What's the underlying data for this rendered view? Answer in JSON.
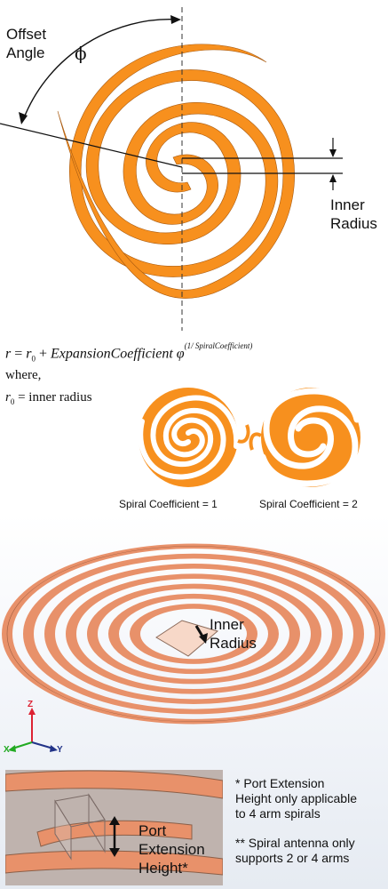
{
  "top_diagram": {
    "offset_label_line1": "Offset",
    "offset_label_line2": "Angle",
    "phi_symbol": "ϕ",
    "inner_radius_line1": "Inner",
    "inner_radius_line2": "Radius"
  },
  "formula": {
    "lhs": "r",
    "eq": "=",
    "r0": "r",
    "r0_sub": "0",
    "plus": "+",
    "coef_text": "ExpansionCoefficient",
    "phi": "φ",
    "exponent": "(1/ SpiralCoefficient)",
    "where": "where,",
    "r0_def": "= inner radius"
  },
  "thumbnails": [
    {
      "caption": "Spiral Coefficient = 1"
    },
    {
      "caption": "Spiral Coefficient = 2"
    }
  ],
  "model_view": {
    "inner_label_line1": "Inner",
    "inner_label_line2": "Radius",
    "axis_z": "Z",
    "axis_y": "Y",
    "axis_x": "X"
  },
  "port_detail": {
    "label_line1": "Port",
    "label_line2": "Extension",
    "label_line3": "Height*"
  },
  "notes": {
    "note1_line1": "* Port Extension",
    "note1_line2": "Height only applicable",
    "note1_line3": "to 4 arm spirals",
    "note2_line1": "** Spiral antenna only",
    "note2_line2": "supports 2 or 4 arms"
  },
  "colors": {
    "orange": "#f7901e",
    "copper": "#e8916a",
    "dark": "#111111"
  }
}
